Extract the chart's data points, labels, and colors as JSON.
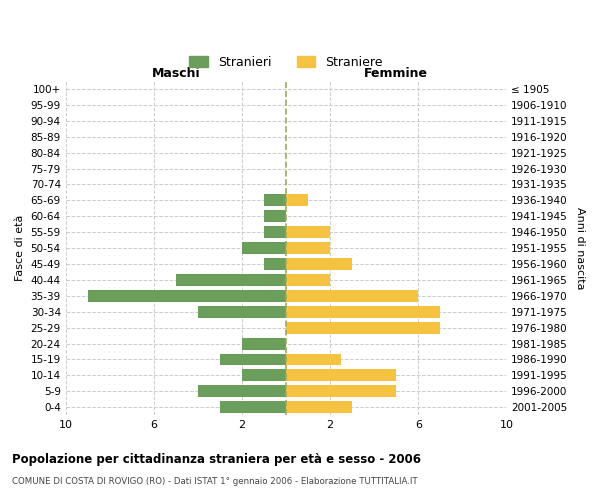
{
  "age_groups": [
    "100+",
    "95-99",
    "90-94",
    "85-89",
    "80-84",
    "75-79",
    "70-74",
    "65-69",
    "60-64",
    "55-59",
    "50-54",
    "45-49",
    "40-44",
    "35-39",
    "30-34",
    "25-29",
    "20-24",
    "15-19",
    "10-14",
    "5-9",
    "0-4"
  ],
  "birth_years": [
    "≤ 1905",
    "1906-1910",
    "1911-1915",
    "1916-1920",
    "1921-1925",
    "1926-1930",
    "1931-1935",
    "1936-1940",
    "1941-1945",
    "1946-1950",
    "1951-1955",
    "1956-1960",
    "1961-1965",
    "1966-1970",
    "1971-1975",
    "1976-1980",
    "1981-1985",
    "1986-1990",
    "1991-1995",
    "1996-2000",
    "2001-2005"
  ],
  "maschi": [
    0,
    0,
    0,
    0,
    0,
    0,
    0,
    1,
    1,
    1,
    2,
    1,
    5,
    9,
    4,
    0,
    2,
    3,
    2,
    4,
    3
  ],
  "femmine": [
    0,
    0,
    0,
    0,
    0,
    0,
    0,
    1,
    0,
    2,
    2,
    3,
    2,
    6,
    7,
    7,
    0,
    2.5,
    5,
    5,
    3
  ],
  "color_maschi": "#6a9e5a",
  "color_femmine": "#f5c242",
  "title": "Popolazione per cittadinanza straniera per età e sesso - 2006",
  "subtitle": "COMUNE DI COSTA DI ROVIGO (RO) - Dati ISTAT 1° gennaio 2006 - Elaborazione TUTTITALIA.IT",
  "ylabel_left": "Fasce di età",
  "ylabel_right": "Anni di nascita",
  "xlabel_left": "Maschi",
  "xlabel_right": "Femmine",
  "legend_maschi": "Stranieri",
  "legend_femmine": "Straniere",
  "xlim": 10,
  "background_color": "#ffffff",
  "grid_color": "#cccccc"
}
